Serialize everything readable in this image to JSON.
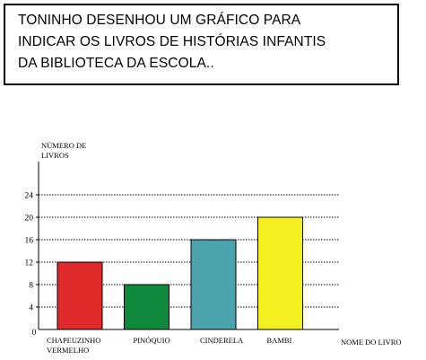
{
  "statement": {
    "lines": [
      "TONINHO DESENHOU UM GRÁFICO PARA",
      "INDICAR OS LIVROS DE HISTÓRIAS INFANTIS",
      "DA BIBLIOTECA DA ESCOLA.."
    ]
  },
  "chart_data": {
    "type": "bar",
    "categories": [
      "CHAPEUZINHO VERMELHO",
      "PINÓQUIO",
      "CINDERELA",
      "BAMBI"
    ],
    "category_label_lines": [
      [
        "CHAPEUZINHO",
        "VERMELHO"
      ],
      [
        "PINÓQUIO"
      ],
      [
        "CINDERELA"
      ],
      [
        "BAMBI"
      ]
    ],
    "values": [
      12,
      8,
      16,
      20
    ],
    "colors": [
      "#e02a2a",
      "#0f8a3c",
      "#4aa3ad",
      "#f4ef1f"
    ],
    "ylabel_lines": [
      "NÚMERO DE",
      "LIVROS"
    ],
    "xlabel": "NOME DO LIVRO",
    "origin_label": "0",
    "yticks": [
      4,
      8,
      12,
      16,
      20,
      24
    ],
    "ylim": [
      0,
      24
    ],
    "grid": true,
    "grid_style": "dotted"
  }
}
